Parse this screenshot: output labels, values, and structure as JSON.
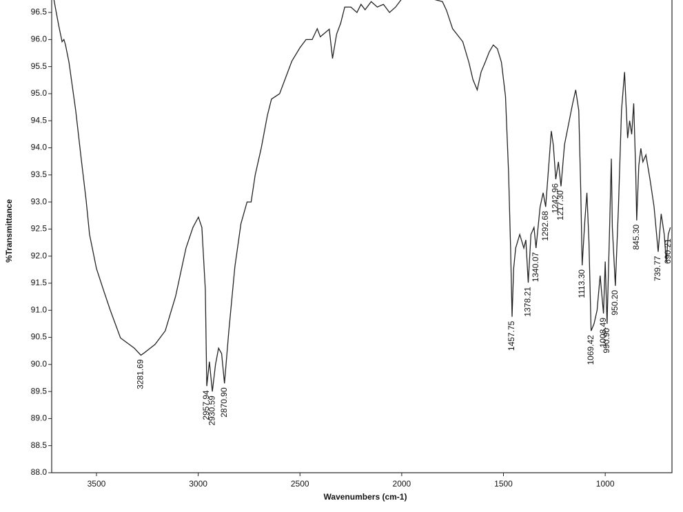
{
  "chart_data": {
    "type": "line",
    "xlabel": "Wavenumbers (cm-1)",
    "ylabel": "%Transmittance",
    "color": "#222222",
    "xlim": [
      3720,
      672
    ],
    "ylim": [
      88,
      96.73
    ],
    "xticks": [
      3500,
      3000,
      2500,
      2000,
      1500,
      1000
    ],
    "yticks": [
      {
        "value": 88,
        "label": "88.0"
      },
      {
        "value": 88.5,
        "label": "88.5"
      },
      {
        "value": 89,
        "label": "89.0"
      },
      {
        "value": 89.5,
        "label": "89.5"
      },
      {
        "value": 90,
        "label": "90.0"
      },
      {
        "value": 90.5,
        "label": "90.5"
      },
      {
        "value": 91,
        "label": "91.0"
      },
      {
        "value": 91.5,
        "label": "91.5"
      },
      {
        "value": 92,
        "label": "92.0"
      },
      {
        "value": 92.5,
        "label": "92.5"
      },
      {
        "value": 93,
        "label": "93.0"
      },
      {
        "value": 93.5,
        "label": "93.5"
      },
      {
        "value": 94,
        "label": "94.0"
      },
      {
        "value": 94.5,
        "label": "94.5"
      },
      {
        "value": 95,
        "label": "95.0"
      },
      {
        "value": 95.5,
        "label": "95.5"
      },
      {
        "value": 96,
        "label": "96.0"
      },
      {
        "value": 96.5,
        "label": "96.5"
      }
    ],
    "grid": false,
    "x": [
      3712,
      3700,
      3685,
      3669,
      3660,
      3652,
      3635,
      3602,
      3575,
      3551,
      3534,
      3500,
      3466,
      3432,
      3382,
      3314,
      3281.69,
      3263,
      3212,
      3162,
      3111,
      3060,
      3026,
      2999,
      2982,
      2965,
      2957.94,
      2945,
      2930.59,
      2915,
      2900,
      2885,
      2870.9,
      2850,
      2820,
      2790,
      2760,
      2740,
      2720,
      2690,
      2660,
      2640,
      2600,
      2570,
      2540,
      2500,
      2470,
      2440,
      2415,
      2400,
      2356,
      2340,
      2320,
      2300,
      2280,
      2250,
      2220,
      2200,
      2180,
      2150,
      2120,
      2090,
      2060,
      2030,
      2000,
      1950,
      1900,
      1850,
      1800,
      1780,
      1750,
      1700,
      1670,
      1650,
      1629,
      1610,
      1590,
      1570,
      1550,
      1530,
      1510,
      1490,
      1475,
      1465,
      1457.75,
      1450,
      1440,
      1420,
      1400,
      1390,
      1378.21,
      1365,
      1350,
      1340.07,
      1320,
      1305,
      1292.68,
      1275,
      1265,
      1255,
      1242.96,
      1230,
      1217.3,
      1200,
      1180,
      1160,
      1145,
      1130,
      1120,
      1113.3,
      1100,
      1090,
      1080,
      1069.42,
      1055,
      1040,
      1025,
      1008.49,
      1000,
      990.9,
      980,
      970,
      965,
      950.2,
      935,
      920,
      905,
      890,
      880,
      870,
      860,
      850,
      845.3,
      835,
      825,
      815,
      800,
      780,
      760,
      739.77,
      725,
      710,
      700,
      690.21,
      680
    ],
    "values": [
      96.8,
      96.55,
      96.25,
      95.96,
      96.0,
      95.9,
      95.58,
      94.69,
      93.8,
      93.04,
      92.4,
      91.77,
      91.38,
      91.0,
      90.49,
      90.3,
      90.17,
      90.22,
      90.37,
      90.62,
      91.26,
      92.15,
      92.53,
      92.72,
      92.53,
      91.38,
      89.6,
      90.05,
      89.5,
      90.0,
      90.3,
      90.2,
      89.65,
      90.6,
      91.8,
      92.6,
      93.0,
      93.0,
      93.5,
      94.0,
      94.6,
      94.9,
      95.0,
      95.3,
      95.6,
      95.85,
      96.0,
      96.0,
      96.2,
      96.05,
      96.19,
      95.65,
      96.1,
      96.3,
      96.6,
      96.6,
      96.5,
      96.65,
      96.55,
      96.7,
      96.6,
      96.65,
      96.5,
      96.6,
      96.75,
      96.8,
      96.78,
      96.75,
      96.7,
      96.54,
      96.2,
      95.96,
      95.58,
      95.26,
      95.07,
      95.4,
      95.58,
      95.77,
      95.9,
      95.83,
      95.58,
      94.95,
      93.55,
      92.15,
      90.88,
      91.77,
      92.15,
      92.4,
      92.15,
      92.3,
      91.51,
      92.4,
      92.53,
      92.15,
      92.91,
      93.17,
      92.91,
      93.8,
      94.31,
      94.05,
      93.42,
      93.74,
      93.29,
      94.06,
      94.44,
      94.82,
      95.07,
      94.69,
      93.17,
      91.83,
      92.66,
      93.17,
      92.27,
      90.62,
      90.75,
      91.0,
      91.64,
      90.94,
      91.9,
      90.75,
      92.3,
      93.8,
      92.53,
      91.45,
      92.91,
      94.69,
      95.4,
      94.18,
      94.5,
      94.25,
      94.82,
      93.55,
      92.66,
      93.67,
      93.99,
      93.74,
      93.87,
      93.42,
      92.91,
      92.08,
      92.78,
      92.4,
      91.89,
      92.4,
      92.53
    ],
    "peaks": [
      {
        "value": 3281.69,
        "label": "3281.69"
      },
      {
        "value": 2957.94,
        "label": "2957.94"
      },
      {
        "value": 2930.59,
        "label": "2930.59"
      },
      {
        "value": 2870.9,
        "label": "2870.90"
      },
      {
        "value": 1457.75,
        "label": "1457.75"
      },
      {
        "value": 1378.21,
        "label": "1378.21"
      },
      {
        "value": 1340.07,
        "label": "1340.07"
      },
      {
        "value": 1292.68,
        "label": "1292.68"
      },
      {
        "value": 1242.96,
        "label": "1242.96"
      },
      {
        "value": 1217.3,
        "label": "1217.30"
      },
      {
        "value": 1113.3,
        "label": "1113.30"
      },
      {
        "value": 1069.42,
        "label": "1069.42"
      },
      {
        "value": 1008.49,
        "label": "1008.49"
      },
      {
        "value": 990.9,
        "label": "990.90"
      },
      {
        "value": 950.2,
        "label": "950.20"
      },
      {
        "value": 845.3,
        "label": "845.30"
      },
      {
        "value": 739.77,
        "label": "739.77"
      },
      {
        "value": 690.21,
        "label": "690.21"
      }
    ]
  }
}
